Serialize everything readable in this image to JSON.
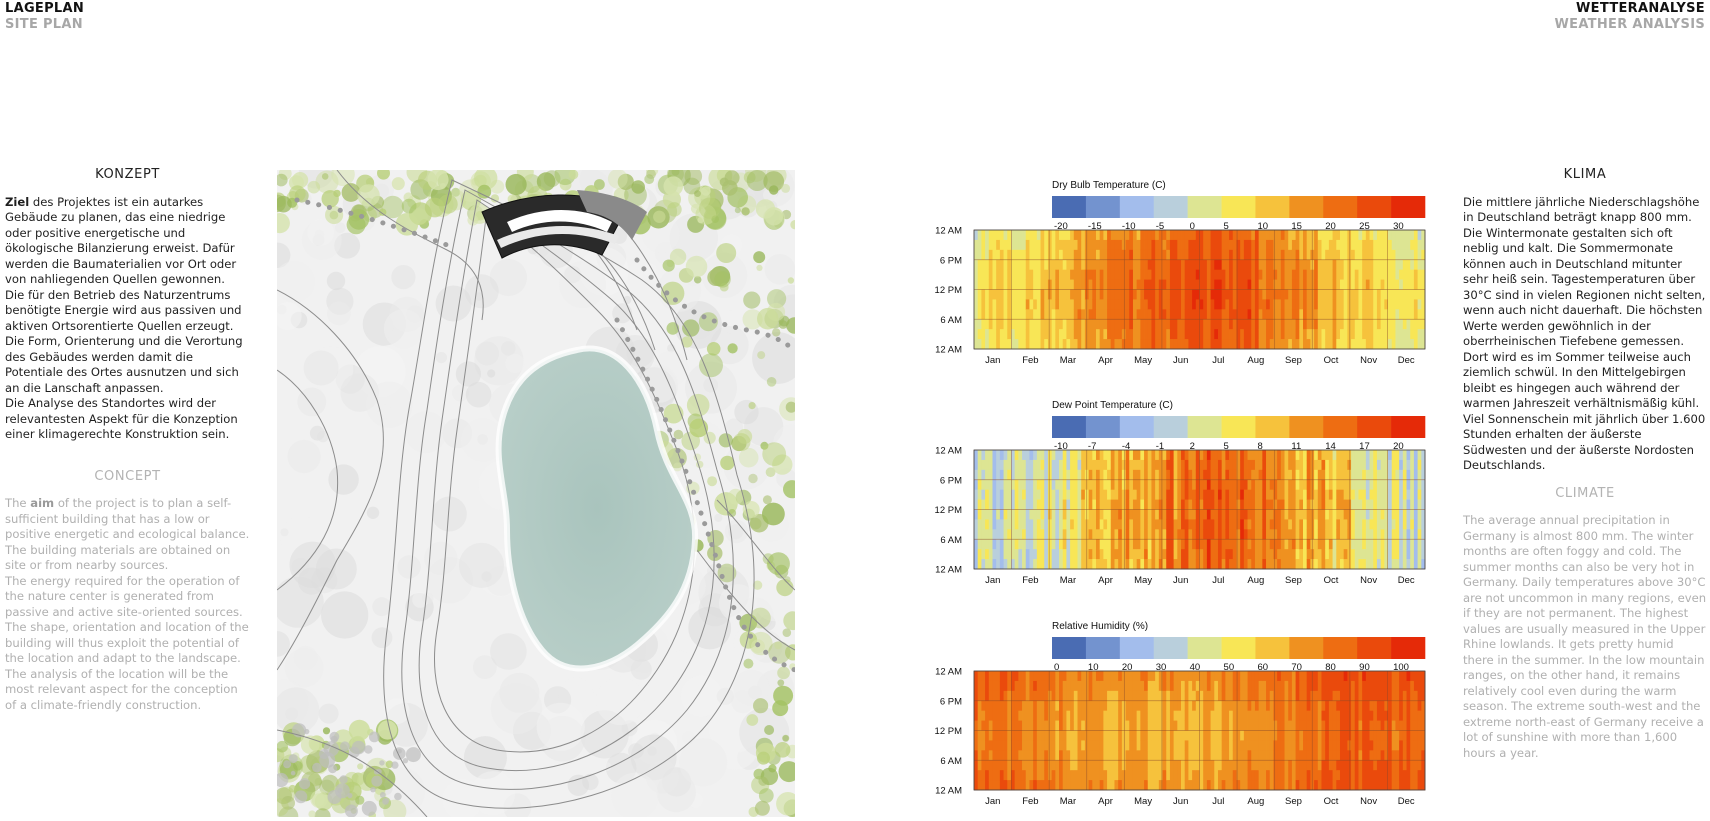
{
  "header_left": {
    "title": "LAGEPLAN",
    "subtitle": "SITE PLAN"
  },
  "header_right": {
    "title": "WETTERANALYSE",
    "subtitle": "WEATHER ANALYSIS"
  },
  "konzept": {
    "heading_de": "KONZEPT",
    "para1_bold": "Ziel",
    "para1_rest": " des Projektes ist ein autarkes Gebäude zu planen, das eine niedrige oder positive energetische und ökologische Bilanzierung erweist. Dafür werden die Baumaterialien vor Ort oder von nahliegenden Quellen gewonnen.",
    "para2": "Die für den Betrieb des Naturzentrums benötigte Energie wird aus passiven und aktiven Ortsorentierte Quellen erzeugt.",
    "para3": "Die Form, Orienterung und die Verortung des Gebäudes werden damit die Potentiale des Ortes ausnutzen und sich an die Lanschaft anpassen.",
    "para4": "Die Analyse des Standortes wird der relevantesten Aspekt für die Konzeption einer klimagerechte Konstruktion sein.",
    "heading_en": "CONCEPT",
    "en1_pre": "The ",
    "en1_bold": "aim",
    "en1_rest": " of the project is to plan a self-sufficient building that has a low or positive energetic and ecological balance. The building materials are obtained on site or from nearby sources.",
    "en2": "The energy required for the operation of the nature center is generated from passive and active site-oriented sources.",
    "en3": "The shape, orientation and location of the building will thus exploit the potential of the location and adapt to the landscape.",
    "en4": "The analysis of the location will be the most relevant aspect for the conception of a climate-friendly construction."
  },
  "klima": {
    "heading_de": "KLIMA",
    "text_de": "Die mittlere jährliche Niederschlagshöhe in Deutschland beträgt knapp 800 mm. Die Wintermonate gestalten sich oft neblig und kalt. Die Sommermonate können auch in Deutschland mitunter sehr heiß sein. Tagestemperaturen über 30°C sind in vielen Regionen nicht selten, wenn auch nicht dauerhaft. Die höchsten Werte werden gewöhnlich in der oberrheinischen Tiefebene gemessen. Dort wird es im Sommer teilweise auch ziemlich schwül. In den Mittelgebirgen bleibt es hingegen auch während der warmen Jahreszeit verhältnismäßig kühl. Viel Sonnenschein mit jährlich über 1.600 Stunden erhalten der äußerste Südwesten und der äußerste Nordosten Deutschlands.",
    "heading_en": "CLIMATE",
    "text_en": "The average annual precipitation in Germany is almost 800 mm. The winter months are often foggy and cold. The summer months can also be very hot in Germany. Daily temperatures above 30°C are not uncommon in many regions, even if they are not permanent. The highest values are usually measured in the Upper Rhine lowlands. It gets pretty humid there in the summer. In the low mountain ranges, on the other hand, it remains relatively cool even during the warm season. The extreme south-west and the extreme north-east of Germany receive a lot of sunshine with more than 1,600 hours a year."
  },
  "legend_colors": [
    "#4a6cb3",
    "#7393cf",
    "#a3bdec",
    "#b9cfdc",
    "#dde593",
    "#f8e656",
    "#f6c23c",
    "#ef9120",
    "#ee6d12",
    "#ea4a0c",
    "#e52a08"
  ],
  "chart_data": [
    {
      "type": "heatmap",
      "title": "Dry Bulb Temperature (C)",
      "legend_values": [
        "-20",
        "-15",
        "-10",
        "-5",
        "0",
        "5",
        "10",
        "15",
        "20",
        "25",
        "30"
      ],
      "y_ticks": [
        "12 AM",
        "6 PM",
        "12 PM",
        "6 AM",
        "12 AM"
      ],
      "x_ticks": [
        "Jan",
        "Feb",
        "Mar",
        "Apr",
        "May",
        "Jun",
        "Jul",
        "Aug",
        "Sep",
        "Oct",
        "Nov",
        "Dec"
      ],
      "monthly_typical": [
        1,
        3,
        6,
        11,
        16,
        19,
        21,
        21,
        16,
        11,
        6,
        2
      ]
    },
    {
      "type": "heatmap",
      "title": "Dew Point Temperature (C)",
      "legend_values": [
        "-10",
        "-7",
        "-4",
        "-1",
        "2",
        "5",
        "8",
        "11",
        "14",
        "17",
        "20"
      ],
      "y_ticks": [
        "12 AM",
        "6 PM",
        "12 PM",
        "6 AM",
        "12 AM"
      ],
      "x_ticks": [
        "Jan",
        "Feb",
        "Mar",
        "Apr",
        "May",
        "Jun",
        "Jul",
        "Aug",
        "Sep",
        "Oct",
        "Nov",
        "Dec"
      ],
      "monthly_typical": [
        -1,
        0,
        2,
        5,
        9,
        12,
        14,
        14,
        11,
        8,
        4,
        1
      ]
    },
    {
      "type": "heatmap",
      "title": "Relative Humidity (%)",
      "legend_values": [
        "0",
        "10",
        "20",
        "30",
        "40",
        "50",
        "60",
        "70",
        "80",
        "90",
        "100"
      ],
      "y_ticks": [
        "12 AM",
        "6 PM",
        "12 PM",
        "6 AM",
        "12 AM"
      ],
      "x_ticks": [
        "Jan",
        "Feb",
        "Mar",
        "Apr",
        "May",
        "Jun",
        "Jul",
        "Aug",
        "Sep",
        "Oct",
        "Nov",
        "Dec"
      ],
      "monthly_typical": [
        87,
        83,
        78,
        72,
        72,
        72,
        72,
        74,
        80,
        85,
        89,
        89
      ]
    }
  ]
}
